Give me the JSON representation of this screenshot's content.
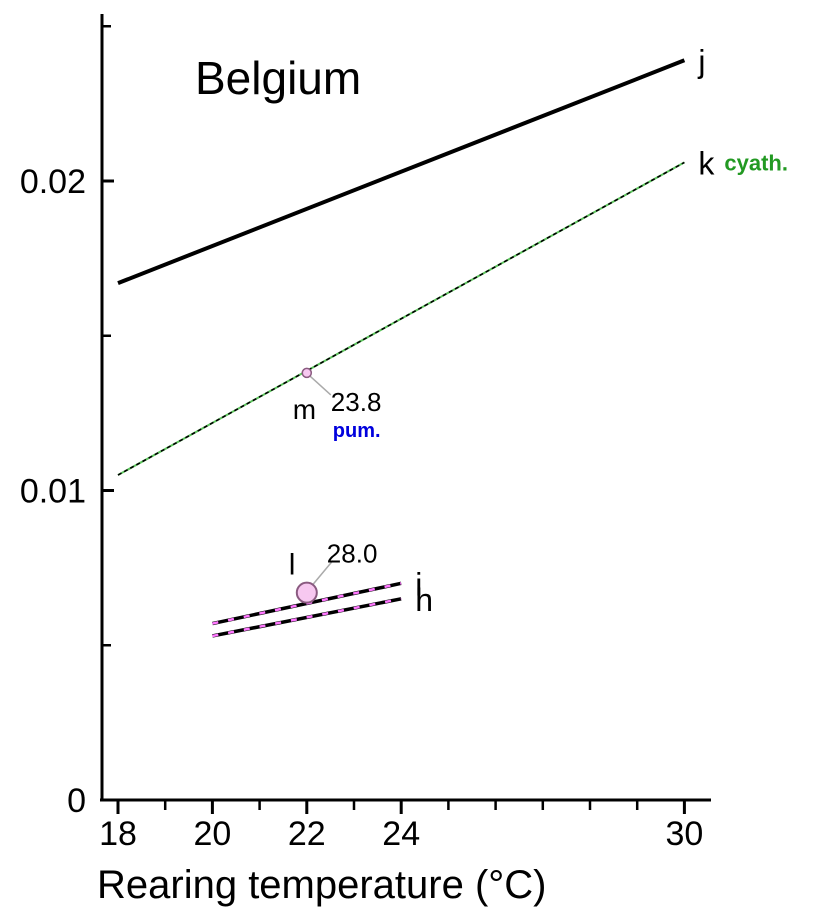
{
  "chart_data": {
    "type": "line",
    "title": "Belgium",
    "xlabel": "Rearing temperature (°C)",
    "ylabel": "",
    "xlim": [
      17.6,
      30.5
    ],
    "ylim": [
      0,
      0.025
    ],
    "x_ticks": [
      18,
      20,
      22,
      24,
      30
    ],
    "x_minor_ticks": [
      19,
      21,
      23,
      25,
      26,
      27,
      28,
      29
    ],
    "y_ticks": [
      {
        "value": 0,
        "label": "0"
      },
      {
        "value": 0.01,
        "label": "0.01"
      },
      {
        "value": 0.02,
        "label": "0.02"
      }
    ],
    "y_minor_ticks": [
      0.005,
      0.015,
      0.025
    ],
    "series": [
      {
        "name": "j",
        "style": "solid",
        "color": "#000000",
        "x": [
          18,
          30
        ],
        "y": [
          0.0167,
          0.0239
        ]
      },
      {
        "name": "k",
        "style": "dashed-green",
        "color": "#000000",
        "accent": "#5ec65e",
        "x": [
          18,
          30
        ],
        "y": [
          0.0105,
          0.0206
        ],
        "note": "cyath.",
        "note_color": "#229922"
      },
      {
        "name": "i",
        "style": "dashed-pink",
        "color": "#000000",
        "accent": "#ff77ff",
        "x": [
          20,
          24
        ],
        "y": [
          0.0057,
          0.007
        ]
      },
      {
        "name": "h",
        "style": "dashed-pink",
        "color": "#000000",
        "accent": "#ff77ff",
        "x": [
          20,
          24
        ],
        "y": [
          0.0053,
          0.0065
        ]
      }
    ],
    "points": [
      {
        "name": "m",
        "x": 22,
        "y": 0.0138,
        "value_label": "23.8",
        "note": "pum.",
        "note_color": "#0000dd",
        "size": "small"
      },
      {
        "name": "l",
        "x": 22,
        "y": 0.0067,
        "value_label": "28.0",
        "size": "large"
      }
    ],
    "colors": {
      "fill_point": "#f7c8f0",
      "point_stroke": "#8a5a80"
    }
  }
}
